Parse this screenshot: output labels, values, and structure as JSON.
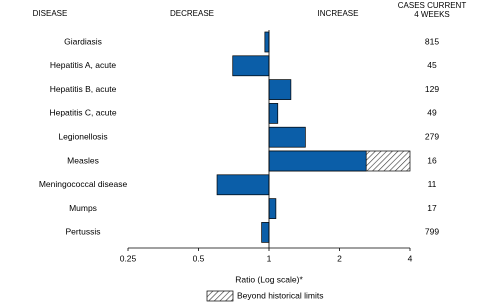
{
  "chart_data": {
    "type": "bar",
    "orientation": "horizontal",
    "headers": {
      "disease": "DISEASE",
      "decrease": "DECREASE",
      "increase": "INCREASE",
      "cases": [
        "CASES CURRENT",
        "4 WEEKS"
      ]
    },
    "categories": [
      "Giardiasis",
      "Hepatitis A, acute",
      "Hepatitis B, acute",
      "Hepatitis C, acute",
      "Legionellosis",
      "Measles",
      "Meningococcal disease",
      "Mumps",
      "Pertussis"
    ],
    "values": [
      0.96,
      0.7,
      1.24,
      1.09,
      1.43,
      4,
      0.6,
      1.07,
      0.93
    ],
    "historical_limits": [
      null,
      null,
      null,
      null,
      null,
      2.6,
      null,
      null,
      null
    ],
    "cases": [
      815,
      45,
      129,
      49,
      279,
      16,
      11,
      17,
      799
    ],
    "color": "#0b5ea8",
    "xlim": [
      0.25,
      4
    ],
    "xticks": [
      0.25,
      0.5,
      1,
      2,
      4
    ],
    "log_scale": true,
    "xlabel": "Ratio (Log scale)*",
    "legend": "Beyond historical limits"
  }
}
